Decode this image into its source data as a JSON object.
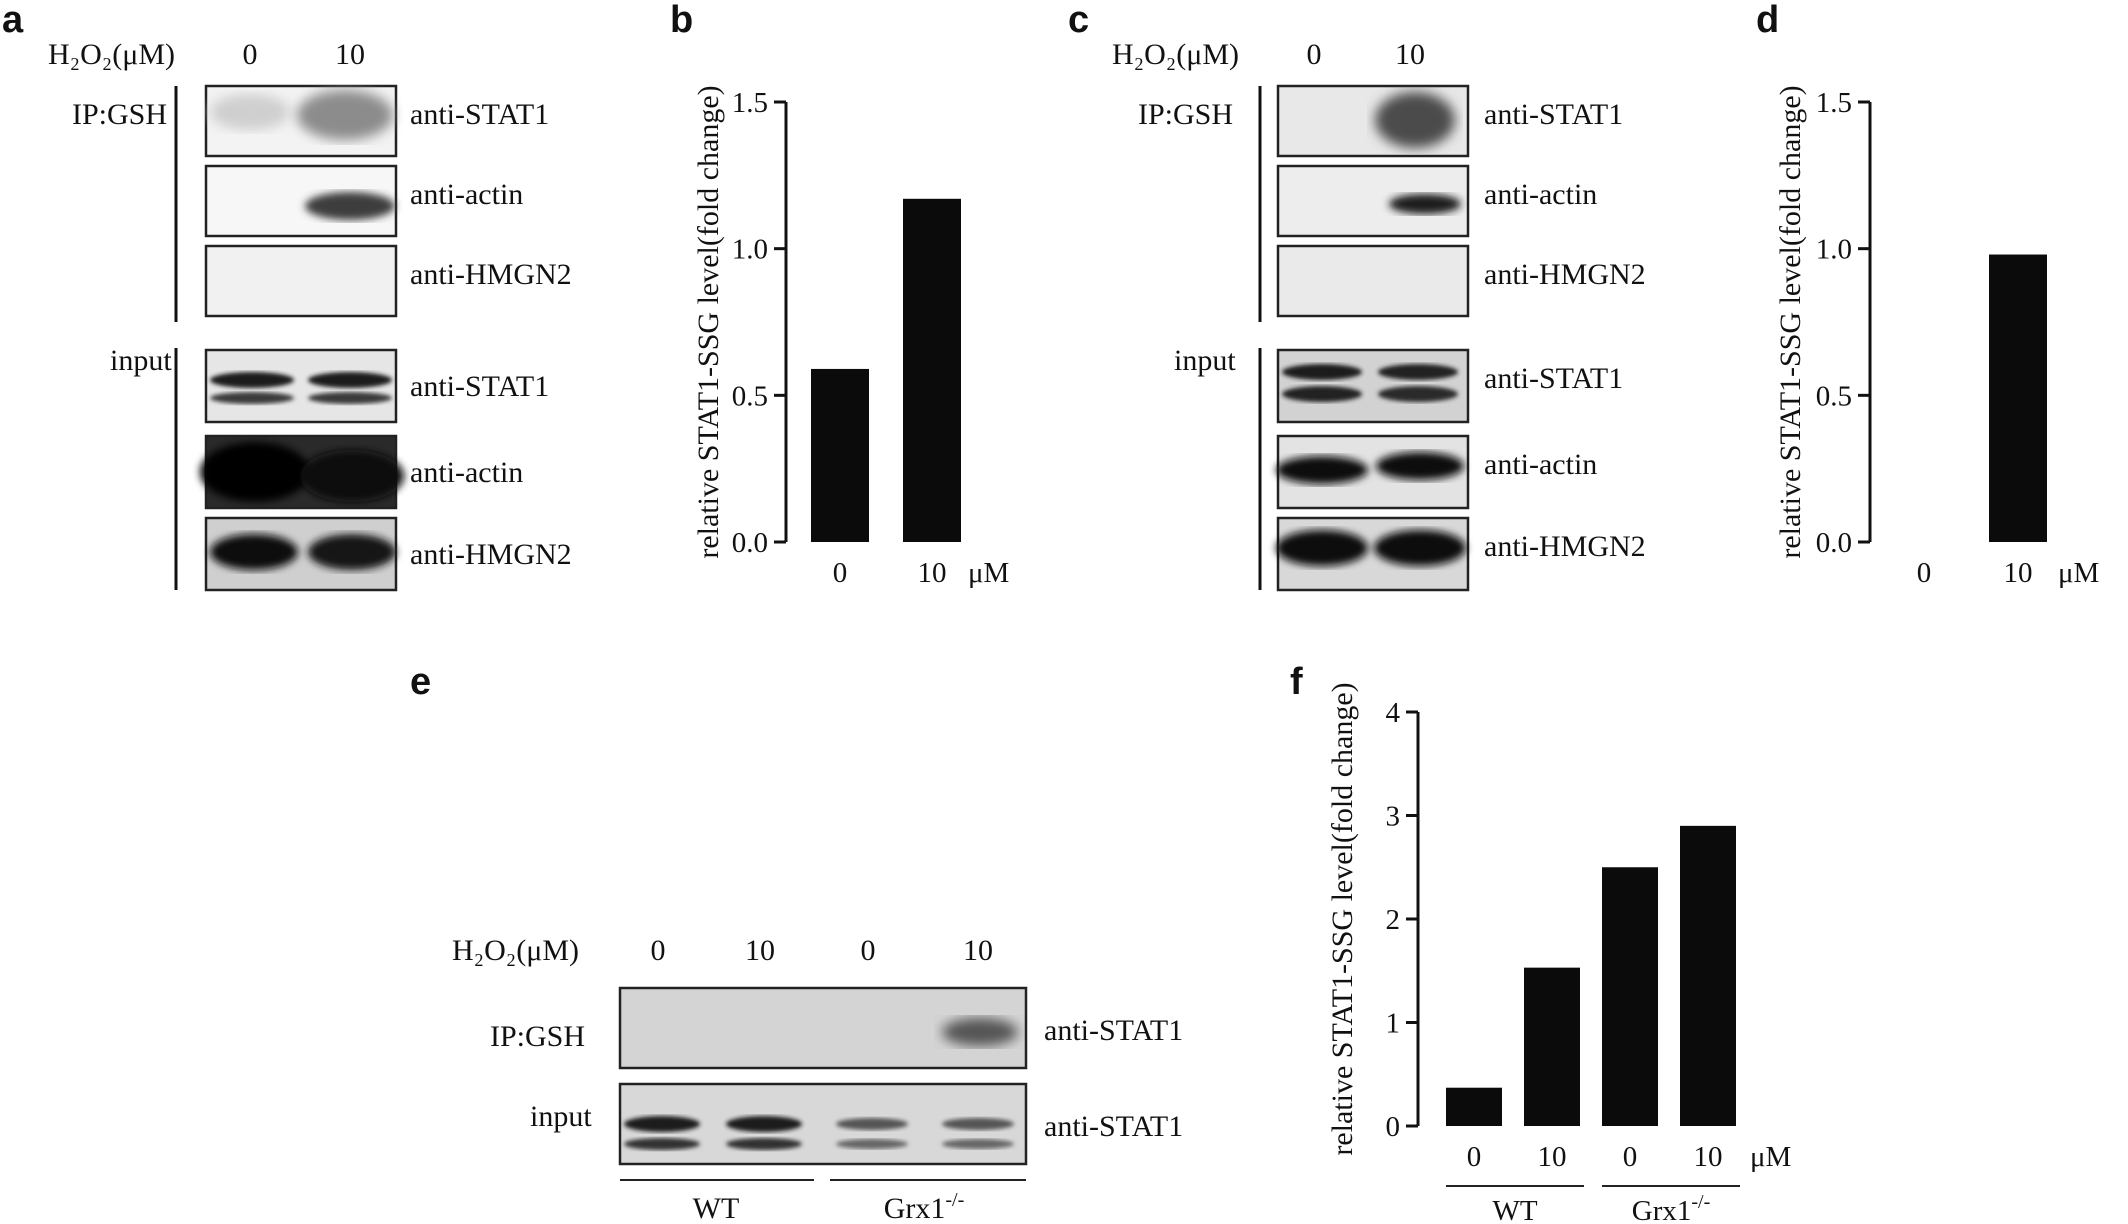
{
  "panel_labels": {
    "a": "a",
    "b": "b",
    "c": "c",
    "d": "d",
    "e": "e",
    "f": "f"
  },
  "blots": {
    "a": {
      "treatment_label": "H₂O₂(μM)",
      "lanes": [
        "0",
        "10"
      ],
      "groups": [
        {
          "label": "IP:GSH",
          "rows": [
            "anti-STAT1",
            "anti-actin",
            "anti-HMGN2"
          ]
        },
        {
          "label": "input",
          "rows": [
            "anti-STAT1",
            "anti-actin",
            "anti-HMGN2"
          ]
        }
      ]
    },
    "c": {
      "treatment_label": "H₂O₂(μM)",
      "lanes": [
        "0",
        "10"
      ],
      "groups": [
        {
          "label": "IP:GSH",
          "rows": [
            "anti-STAT1",
            "anti-actin",
            "anti-HMGN2"
          ]
        },
        {
          "label": "input",
          "rows": [
            "anti-STAT1",
            "anti-actin",
            "anti-HMGN2"
          ]
        }
      ]
    },
    "e": {
      "treatment_label": "H₂O₂(μM)",
      "lanes": [
        "0",
        "10",
        "0",
        "10"
      ],
      "rows": [
        {
          "label": "IP:GSH",
          "antibody": "anti-STAT1"
        },
        {
          "label": "input",
          "antibody": "anti-STAT1"
        }
      ],
      "genotypes": [
        "WT",
        "Grx1-/-"
      ]
    }
  },
  "chart_data": [
    {
      "panel": "b",
      "type": "bar",
      "categories": [
        "0",
        "10"
      ],
      "values": [
        0.59,
        1.17
      ],
      "ylabel": "relative STAT1-SSG level(fold change)",
      "x_unit": "μM",
      "ylim": [
        0,
        1.5
      ],
      "yticks": [
        "0.0",
        "0.5",
        "1.0",
        "1.5"
      ],
      "ytick_values": [
        0,
        0.5,
        1.0,
        1.5
      ]
    },
    {
      "panel": "d",
      "type": "bar",
      "categories": [
        "0",
        "10"
      ],
      "values": [
        0,
        0.98
      ],
      "ylabel": "relative STAT1-SSG level(fold change)",
      "x_unit": "μM",
      "ylim": [
        0,
        1.5
      ],
      "yticks": [
        "0.0",
        "0.5",
        "1.0",
        "1.5"
      ],
      "ytick_values": [
        0,
        0.5,
        1.0,
        1.5
      ]
    },
    {
      "panel": "f",
      "type": "bar",
      "categories": [
        "0",
        "10",
        "0",
        "10"
      ],
      "groups": [
        "WT",
        "Grx1-/-"
      ],
      "values": [
        0.37,
        1.53,
        2.5,
        2.9
      ],
      "ylabel": "relative STAT1-SSG level(fold change)",
      "x_unit": "μM",
      "ylim": [
        0,
        4
      ],
      "yticks": [
        "0",
        "1",
        "2",
        "3",
        "4"
      ],
      "ytick_values": [
        0,
        1,
        2,
        3,
        4
      ]
    }
  ]
}
